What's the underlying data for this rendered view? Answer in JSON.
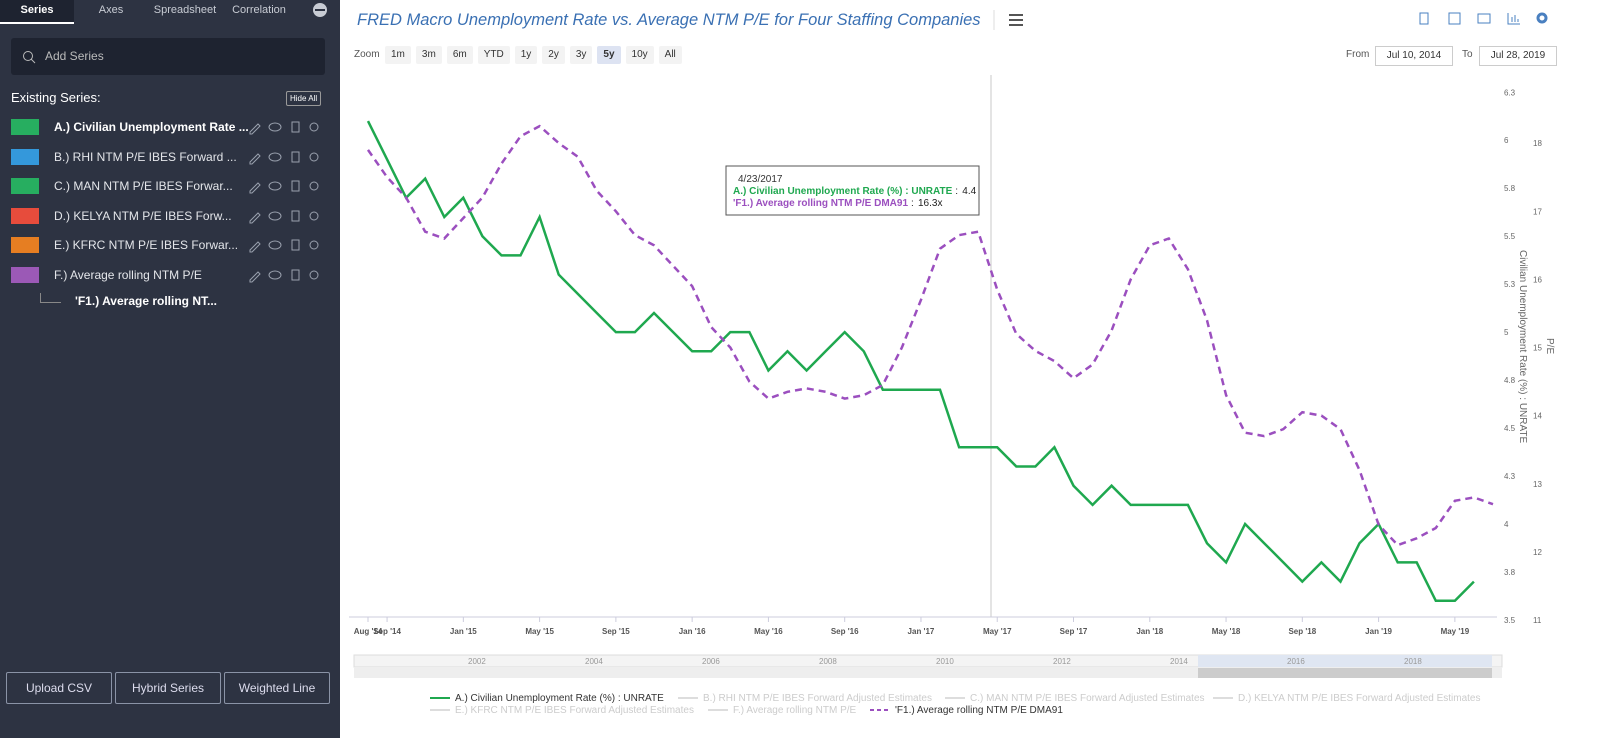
{
  "sidebar": {
    "tabs": [
      "Series",
      "Axes",
      "Spreadsheet",
      "Correlation"
    ],
    "active_tab": "Series",
    "add_series": "Add Series",
    "existing_label": "Existing Series:",
    "hide_all": "Hide All",
    "items": [
      {
        "name": "A.) Civilian Unemployment Rate ...",
        "color": "#27ae60"
      },
      {
        "name": "B.) RHI NTM P/E IBES Forward ...",
        "color": "#3498db"
      },
      {
        "name": "C.) MAN NTM P/E IBES Forwar...",
        "color": "#27ae60"
      },
      {
        "name": "D.) KELYA NTM P/E IBES Forw...",
        "color": "#e74c3c"
      },
      {
        "name": "E.) KFRC NTM P/E IBES Forwar...",
        "color": "#e67e22"
      },
      {
        "name": "F.) Average rolling NTM P/E",
        "color": "#9b59b6"
      }
    ],
    "sub_item": "'F1.) Average rolling NT...",
    "buttons": [
      "Upload CSV",
      "Hybrid Series",
      "Weighted Line"
    ]
  },
  "header": {
    "zoom_label": "Zoom",
    "zoom": [
      "1m",
      "3m",
      "6m",
      "YTD",
      "1y",
      "2y",
      "3y",
      "5y",
      "10y",
      "All"
    ],
    "zoom_active": "5y",
    "from_label": "From",
    "from": "Jul 10, 2014",
    "to_label": "To",
    "to": "Jul 28, 2019"
  },
  "chart_data": {
    "type": "line",
    "title": "FRED Macro Unemployment Rate vs. Average NTM P/E for Four Staffing Companies",
    "categories": [
      "Aug '14",
      "Sep '14",
      null,
      null,
      null,
      "Jan '15",
      null,
      null,
      null,
      "May '15",
      null,
      null,
      null,
      "Sep '15",
      null,
      null,
      null,
      "Jan '16",
      null,
      null,
      null,
      "May '16",
      null,
      null,
      null,
      "Sep '16",
      null,
      null,
      null,
      "Jan '17",
      null,
      null,
      null,
      "May '17",
      null,
      null,
      null,
      "Sep '17",
      null,
      null,
      null,
      "Jan '18",
      null,
      null,
      null,
      "May '18",
      null,
      null,
      null,
      "Sep '18",
      null,
      null,
      null,
      "Jan '19",
      null,
      null,
      null,
      "May '19",
      null,
      null
    ],
    "series": [
      {
        "name": "A.) Civilian Unemployment Rate (%) : UNRATE",
        "color": "#1fa84f",
        "dashed": false,
        "axis": "y",
        "values": [
          6.1,
          5.9,
          5.7,
          5.8,
          5.6,
          5.7,
          5.5,
          5.4,
          5.4,
          5.6,
          5.3,
          5.2,
          5.1,
          5.0,
          5.0,
          5.1,
          5.0,
          4.9,
          4.9,
          5.0,
          5.0,
          4.8,
          4.9,
          4.8,
          4.9,
          5.0,
          4.9,
          4.7,
          4.7,
          4.7,
          4.7,
          4.4,
          4.4,
          4.4,
          4.3,
          4.3,
          4.4,
          4.2,
          4.1,
          4.2,
          4.1,
          4.1,
          4.1,
          4.1,
          3.9,
          3.8,
          4.0,
          3.9,
          3.8,
          3.7,
          3.8,
          3.7,
          3.9,
          4.0,
          3.8,
          3.8,
          3.6,
          3.6,
          3.7,
          null
        ]
      },
      {
        "name": "'F1.) Average rolling NTM P/E DMA91",
        "color": "#9b4fbf",
        "dashed": true,
        "axis": "y2",
        "values": [
          17.9,
          17.5,
          17.2,
          16.7,
          16.6,
          16.9,
          17.2,
          17.7,
          18.1,
          18.25,
          18.0,
          17.8,
          17.3,
          17.0,
          16.65,
          16.5,
          16.2,
          15.9,
          15.3,
          15.0,
          14.5,
          14.25,
          14.35,
          14.4,
          14.35,
          14.25,
          14.3,
          14.45,
          15.0,
          15.7,
          16.45,
          16.65,
          16.7,
          15.85,
          15.2,
          14.95,
          14.8,
          14.55,
          14.75,
          15.25,
          16.0,
          16.5,
          16.6,
          16.15,
          15.4,
          14.3,
          13.75,
          13.7,
          13.8,
          14.05,
          14.0,
          13.8,
          13.2,
          12.4,
          12.1,
          12.2,
          12.35,
          12.75,
          12.8,
          12.7
        ]
      }
    ],
    "legend_hidden": [
      "B.) RHI NTM P/E IBES Forward Adjusted Estimates",
      "C.) MAN NTM P/E IBES Forward Adjusted Estimates",
      "D.) KELYA NTM P/E IBES Forward Adjusted Estimates",
      "E.) KFRC NTM P/E IBES Forward Adjusted Estimates",
      "F.) Average rolling NTM P/E"
    ],
    "ylim": [
      3.5,
      6.34
    ],
    "yticks": [
      3.5,
      {
        "value": 3.75,
        "label": "3.8"
      },
      4,
      {
        "value": 4.25,
        "label": "4.3"
      },
      4.5,
      {
        "value": 4.75,
        "label": "4.8"
      },
      5,
      {
        "value": 5.25,
        "label": "5.3"
      },
      5.5,
      {
        "value": 5.75,
        "label": "5.8"
      },
      6,
      {
        "value": 6.25,
        "label": "6.3"
      }
    ],
    "ylabel": "Civilian Unemployment Rate (%) : UNRATE",
    "y2lim": [
      11,
      19
    ],
    "y2ticks": [
      11,
      12,
      13,
      14,
      15,
      16,
      17,
      18
    ],
    "y2label": "P/E",
    "navigator": [
      "2002",
      "2004",
      "2006",
      "2008",
      "2010",
      "2012",
      "2014",
      "2016",
      "2018"
    ],
    "tooltip": {
      "date": "4/23/2017",
      "rows": [
        {
          "label": "A.) Civilian Unemployment Rate (%) : UNRATE",
          "value": 4.4
        },
        {
          "label": "'F1.) Average rolling NTM P/E DMA91",
          "value": "16.3x"
        }
      ]
    }
  }
}
